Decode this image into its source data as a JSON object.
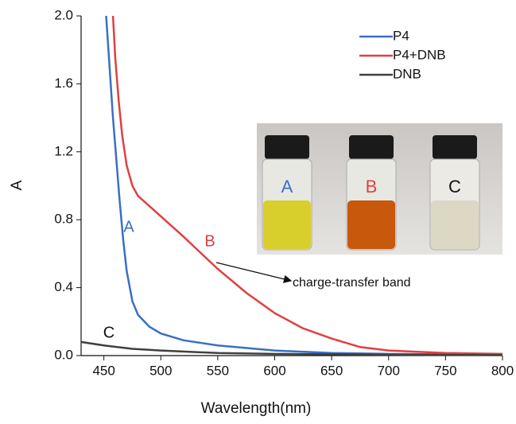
{
  "chart_data": {
    "type": "line",
    "x_label": "Wavelength(nm)",
    "y_label": "A",
    "xlim": [
      430,
      800
    ],
    "xticks": [
      450,
      500,
      550,
      600,
      650,
      700,
      750,
      800
    ],
    "ylim": [
      0,
      2
    ],
    "yticks": [
      {
        "value": 0,
        "label": "0.0"
      },
      0.4,
      0.8,
      1.2,
      1.6,
      {
        "value": 2,
        "label": "2.0"
      }
    ],
    "legend": "upper right",
    "series": [
      {
        "name": "P4",
        "color": "#3a6fc4",
        "x": [
          452,
          455,
          458,
          461,
          464,
          467,
          470,
          475,
          480,
          490,
          500,
          520,
          550,
          600,
          650,
          700,
          750,
          800
        ],
        "values": [
          2.0,
          1.7,
          1.4,
          1.15,
          0.9,
          0.68,
          0.5,
          0.32,
          0.24,
          0.17,
          0.13,
          0.09,
          0.06,
          0.03,
          0.015,
          0.01,
          0.007,
          0.005
        ]
      },
      {
        "name": "P4+DNB",
        "color": "#e04040",
        "x": [
          458,
          460,
          463,
          466,
          470,
          475,
          480,
          490,
          500,
          520,
          550,
          575,
          600,
          625,
          650,
          675,
          700,
          750,
          800
        ],
        "values": [
          2.0,
          1.75,
          1.5,
          1.3,
          1.12,
          1.0,
          0.94,
          0.88,
          0.82,
          0.7,
          0.51,
          0.37,
          0.25,
          0.16,
          0.1,
          0.05,
          0.03,
          0.015,
          0.01
        ]
      },
      {
        "name": "DNB",
        "color": "#404040",
        "x": [
          430,
          450,
          475,
          500,
          550,
          600,
          700,
          800
        ],
        "values": [
          0.08,
          0.06,
          0.04,
          0.03,
          0.015,
          0.01,
          0.005,
          0.003
        ]
      }
    ],
    "annotations": [
      "A",
      "B",
      "C",
      "charge-transfer band"
    ],
    "inset_labels": [
      "A",
      "B",
      "C"
    ]
  }
}
